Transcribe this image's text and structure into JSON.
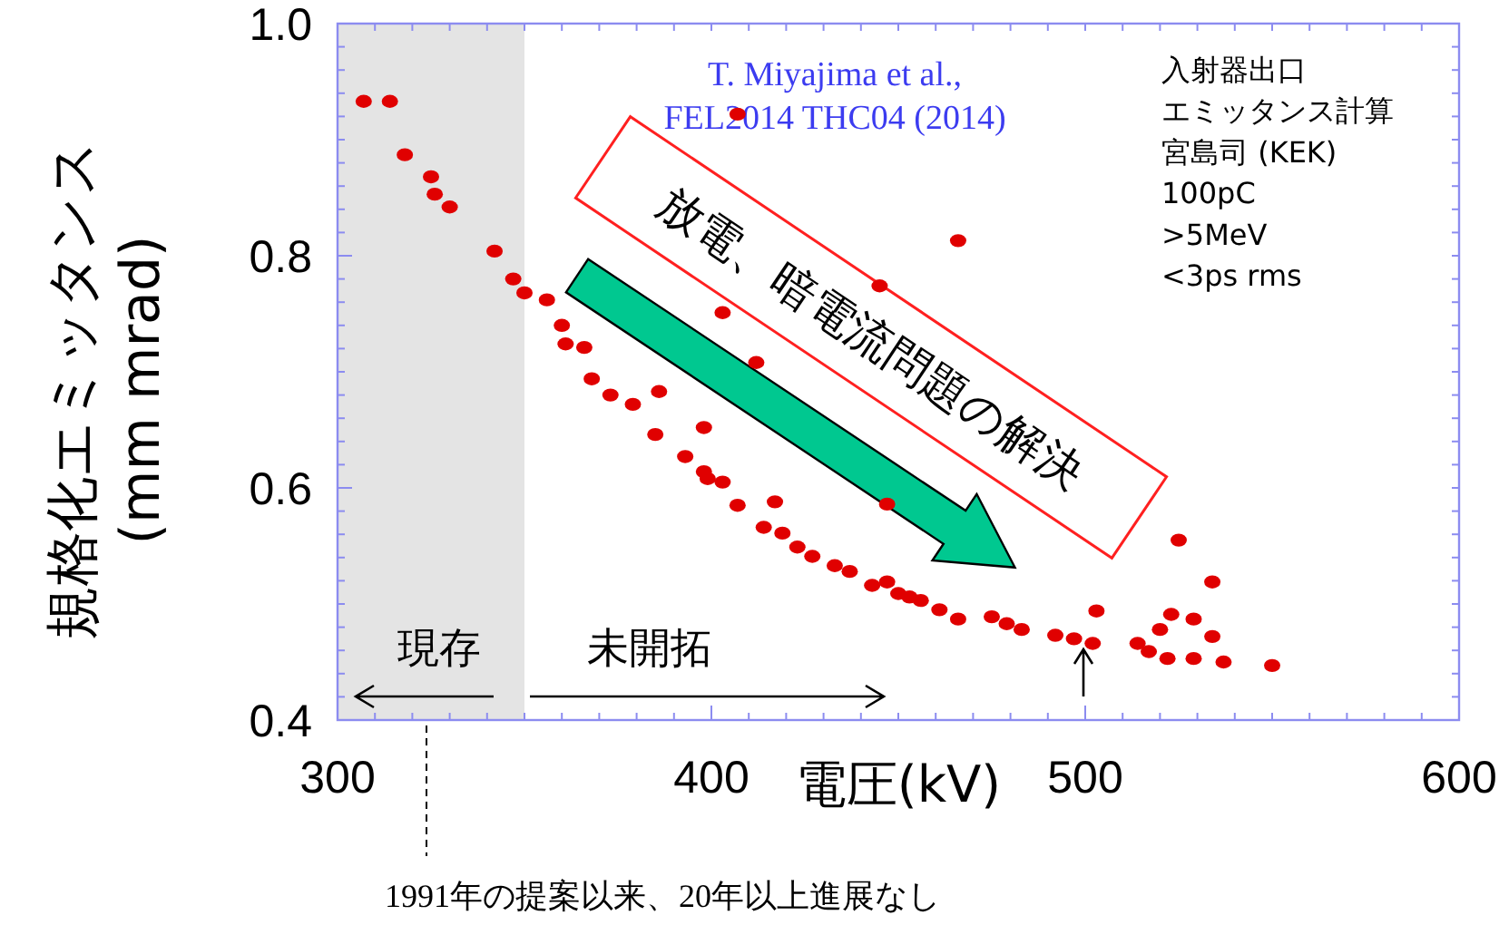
{
  "chart_data": {
    "type": "scatter",
    "xlabel": "電圧(kV)",
    "ylabel": "規格化エミッタンス\n(mm mrad)",
    "xlim": [
      300,
      600
    ],
    "ylim": [
      0.4,
      1.0
    ],
    "xticks": [
      300,
      400,
      500,
      600
    ],
    "yticks": [
      0.4,
      0.6,
      0.8,
      {
        "value": 1,
        "label": "1.0"
      }
    ],
    "grid": false,
    "marker": "circle",
    "bands": [
      {
        "axis": "x",
        "from": 300,
        "to": 350,
        "color": "#e4e4e4"
      }
    ],
    "annotations": [
      "T. Miyajima et al.,\nFEL2014 THC04 (2014)",
      "入射器出口",
      "エミッタンス計算",
      "宮島司 (KEK)",
      "100pC",
      ">5MeV",
      "<3ps rms",
      "放電、暗電流問題の解決",
      "現存",
      "未開拓",
      "1991年の提案以来、20年以上進展なし"
    ],
    "series": [
      {
        "color": "#e00000",
        "x": [
          307,
          314,
          318,
          325,
          326,
          330,
          342,
          347,
          350,
          356,
          360,
          361,
          366,
          368,
          373,
          379,
          386,
          385,
          393,
          398,
          398,
          399,
          403,
          403,
          407,
          407,
          412,
          414,
          417,
          419,
          423,
          427,
          433,
          437,
          443,
          445,
          447,
          447,
          450,
          453,
          456,
          461,
          466,
          466,
          475,
          479,
          483,
          492,
          497,
          502,
          503,
          514,
          517,
          520,
          522,
          523,
          525,
          529,
          529,
          534,
          534,
          537,
          550
        ],
        "values": [
          0.933,
          0.933,
          0.887,
          0.868,
          0.853,
          0.842,
          0.804,
          0.78,
          0.768,
          0.762,
          0.74,
          0.724,
          0.721,
          0.694,
          0.68,
          0.672,
          0.683,
          0.646,
          0.627,
          0.652,
          0.614,
          0.608,
          0.605,
          0.751,
          0.922,
          0.585,
          0.708,
          0.566,
          0.588,
          0.561,
          0.549,
          0.541,
          0.533,
          0.528,
          0.516,
          0.774,
          0.519,
          0.586,
          0.509,
          0.506,
          0.503,
          0.495,
          0.487,
          0.813,
          0.489,
          0.483,
          0.478,
          0.473,
          0.47,
          0.466,
          0.494,
          0.466,
          0.459,
          0.478,
          0.453,
          0.491,
          0.555,
          0.453,
          0.487,
          0.519,
          0.472,
          0.45,
          0.447
        ]
      }
    ]
  }
}
